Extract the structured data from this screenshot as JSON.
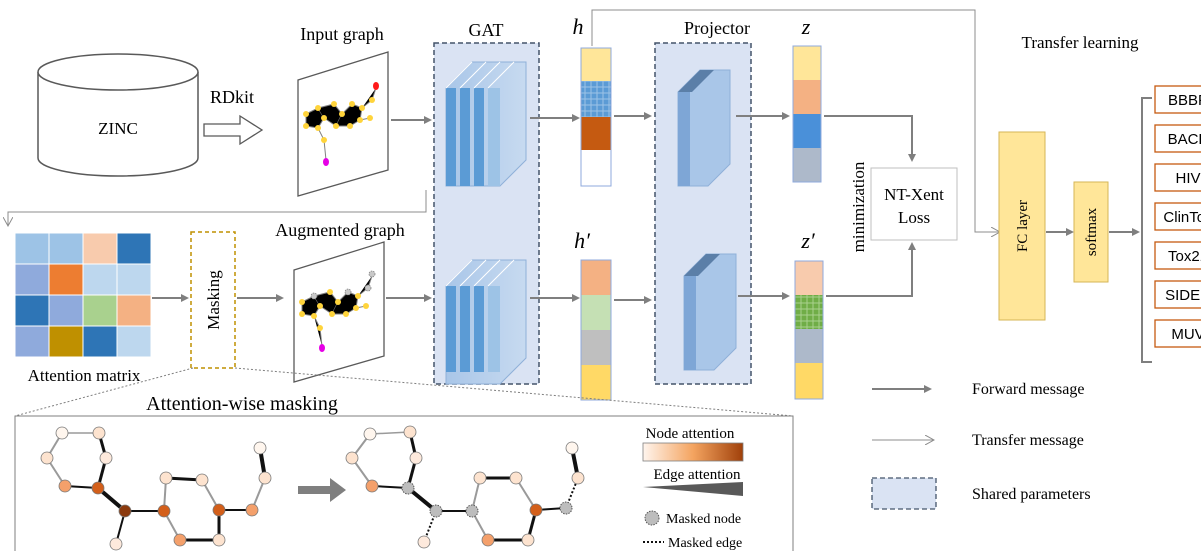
{
  "labels": {
    "zinc": "ZINC",
    "rdkit": "RDkit",
    "input_graph": "Input graph",
    "gat": "GAT",
    "h": "h",
    "h_prime": "h′",
    "projector": "Projector",
    "z": "z",
    "z_prime": "z′",
    "minimization": "minimization",
    "loss_line1": "NT-Xent",
    "loss_line2": "Loss",
    "transfer_learning": "Transfer learning",
    "fc_layer": "FC layer",
    "softmax": "softmax",
    "attention_matrix": "Attention matrix",
    "masking": "Masking",
    "augmented_graph": "Augmented graph",
    "attention_wise_masking": "Attention-wise masking",
    "node_attention": "Node attention",
    "edge_attention": "Edge attention",
    "masked_node": "Masked node",
    "masked_edge": "Masked edge"
  },
  "tasks": [
    "BBBP",
    "BACE",
    "HIV",
    "ClinTox",
    "Tox21",
    "SIDER",
    "MUV"
  ],
  "legend": {
    "forward": "Forward message",
    "transfer": "Transfer message",
    "shared": "Shared parameters"
  },
  "colors": {
    "arrow": "#7f7f7f",
    "shared_fill": "#dae3f3",
    "shared_border": "#44546a",
    "task_border": "#c55a11",
    "fc_fill": "#ffe699",
    "masking_border": "#bf9000",
    "node_yellow": "#ffd43b",
    "node_red": "#ff1a1a",
    "node_magenta": "#e600e6"
  },
  "vectors": {
    "h": [
      "#ffe699",
      "#5b9bd5",
      "#c55a11",
      "#ffffff"
    ],
    "z": [
      "#ffe699",
      "#f4b183",
      "#4a90d9",
      "#adb9ca"
    ],
    "h_prime": [
      "#f4b183",
      "#c5e0b4",
      "#bfbfbf",
      "#ffd966"
    ],
    "z_prime": [
      "#f8cbad",
      "#70ad47",
      "#adb9ca",
      "#ffd966"
    ]
  },
  "attention_matrix_cells": [
    [
      "#9dc3e6",
      "#9dc3e6",
      "#f8cbad",
      "#2e75b6"
    ],
    [
      "#8faadc",
      "#ed7d31",
      "#bdd7ee",
      "#bdd7ee"
    ],
    [
      "#2e75b6",
      "#8faadc",
      "#a9d18e",
      "#f4b183"
    ],
    [
      "#8faadc",
      "#bf9000",
      "#2e75b6",
      "#bdd7ee"
    ]
  ]
}
